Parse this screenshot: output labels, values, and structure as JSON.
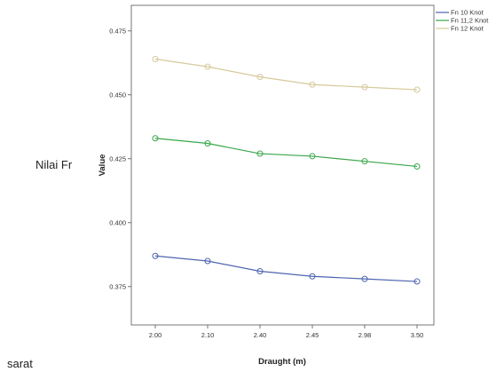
{
  "page": {
    "left_label": "Nilai Fr",
    "bottom_label": "sarat"
  },
  "chart_data": {
    "type": "line",
    "xlabel": "Draught (m)",
    "ylabel": "Value",
    "categories": [
      "2.00",
      "2.10",
      "2.40",
      "2.45",
      "2.98",
      "3.50"
    ],
    "ylim": [
      0.36,
      0.485
    ],
    "yticks": [
      0.375,
      0.4,
      0.425,
      0.45,
      0.475
    ],
    "ytick_labels": [
      "0.375",
      "0.400",
      "0.425",
      "0.450",
      "0.475"
    ],
    "legend_position": "top-right",
    "grid": false,
    "series": [
      {
        "name": "Fn 10 Knot",
        "color": "#4e65b0",
        "values": [
          0.387,
          0.385,
          0.381,
          0.379,
          0.378,
          0.377
        ]
      },
      {
        "name": "Fn 11,2 Knot",
        "color": "#3aa64a",
        "values": [
          0.433,
          0.431,
          0.427,
          0.426,
          0.424,
          0.422
        ]
      },
      {
        "name": "Fn 12 Knot",
        "color": "#d6c99b",
        "values": [
          0.464,
          0.461,
          0.457,
          0.454,
          0.453,
          0.452
        ]
      }
    ]
  }
}
